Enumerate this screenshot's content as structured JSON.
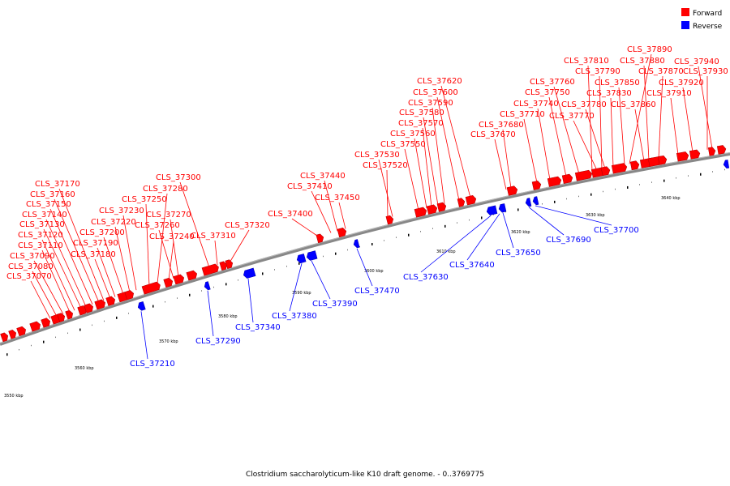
{
  "caption": "Clostridium saccharolyticum-like K10 draft genome. - 0..3769775",
  "legend": [
    {
      "label": "Forward",
      "color": "#ff0000"
    },
    {
      "label": "Reverse",
      "color": "#0000ff"
    }
  ],
  "colors": {
    "forward": "#ff0000",
    "reverse": "#0000ff",
    "backbone": "#888888"
  },
  "scale_labels": [
    "3550 kbp",
    "3560 kbp",
    "3570 kbp",
    "3580 kbp",
    "3590 kbp",
    "3600 kbp",
    "3610 kbp",
    "3620 kbp",
    "3630 kbp",
    "3640 kbp"
  ],
  "forward_labels": [
    "CLS_37070",
    "CLS_37080",
    "CLS_37090",
    "CLS_37110",
    "CLS_37120",
    "CLS_37130",
    "CLS_37140",
    "CLS_37150",
    "CLS_37160",
    "CLS_37170",
    "CLS_37180",
    "CLS_37190",
    "CLS_37200",
    "CLS_37220",
    "CLS_37230",
    "CLS_37240",
    "CLS_37250",
    "CLS_37260",
    "CLS_37270",
    "CLS_37280",
    "CLS_37300",
    "CLS_37310",
    "CLS_37320",
    "CLS_37400",
    "CLS_37410",
    "CLS_37440",
    "CLS_37450",
    "CLS_37520",
    "CLS_37530",
    "CLS_37550",
    "CLS_37560",
    "CLS_37570",
    "CLS_37580",
    "CLS_37590",
    "CLS_37600",
    "CLS_37620",
    "CLS_37670",
    "CLS_37680",
    "CLS_37710",
    "CLS_37740",
    "CLS_37750",
    "CLS_37760",
    "CLS_37770",
    "CLS_37780",
    "CLS_37790",
    "CLS_37810",
    "CLS_37830",
    "CLS_37850",
    "CLS_37860",
    "CLS_37870",
    "CLS_37880",
    "CLS_37890",
    "CLS_37910",
    "CLS_37920",
    "CLS_37930",
    "CLS_37940"
  ],
  "reverse_labels": [
    "CLS_37210",
    "CLS_37290",
    "CLS_37340",
    "CLS_37380",
    "CLS_37390",
    "CLS_37470",
    "CLS_37630",
    "CLS_37640",
    "CLS_37650",
    "CLS_37690",
    "CLS_37700"
  ]
}
